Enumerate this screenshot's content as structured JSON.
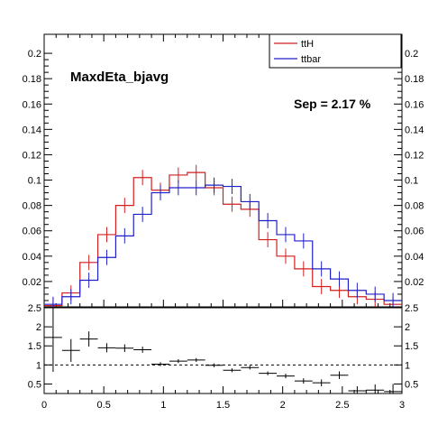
{
  "chart_data": [
    {
      "type": "line",
      "panel": "top",
      "title": "MaxdEta_bjavg",
      "annotation": "Sep = 2.17 %",
      "xlim": [
        0,
        3
      ],
      "ylim": [
        0,
        0.215
      ],
      "yticks": [
        "0.02",
        "0.04",
        "0.06",
        "0.08",
        "0.1",
        "0.12",
        "0.14",
        "0.16",
        "0.18",
        "0.2"
      ],
      "ytick_values": [
        0.02,
        0.04,
        0.06,
        0.08,
        0.1,
        0.12,
        0.14,
        0.16,
        0.18,
        0.2
      ],
      "legend_position": "top-right",
      "bin_edges": [
        0,
        0.15,
        0.3,
        0.45,
        0.6,
        0.75,
        0.9,
        1.05,
        1.2,
        1.35,
        1.5,
        1.65,
        1.8,
        1.95,
        2.1,
        2.25,
        2.4,
        2.55,
        2.7,
        2.85,
        3.0
      ],
      "series": [
        {
          "name": "ttH",
          "color": "#d02020",
          "values": [
            0.001,
            0.011,
            0.035,
            0.057,
            0.08,
            0.102,
            0.092,
            0.104,
            0.106,
            0.094,
            0.081,
            0.077,
            0.053,
            0.04,
            0.03,
            0.016,
            0.013,
            0.008,
            0.006,
            0.002
          ]
        },
        {
          "name": "ttbar",
          "color": "#2020c8",
          "values": [
            0.002,
            0.008,
            0.021,
            0.039,
            0.056,
            0.073,
            0.09,
            0.094,
            0.094,
            0.096,
            0.095,
            0.083,
            0.068,
            0.057,
            0.052,
            0.03,
            0.022,
            0.013,
            0.01,
            0.005
          ]
        }
      ],
      "grid": false
    },
    {
      "type": "scatter",
      "panel": "bottom",
      "xlim": [
        0,
        3
      ],
      "ylim": [
        0.25,
        2.5
      ],
      "xticks": [
        "0",
        "0.5",
        "1",
        "1.5",
        "2",
        "2.5",
        "3"
      ],
      "xtick_values": [
        0,
        0.5,
        1,
        1.5,
        2,
        2.5,
        3
      ],
      "yticks_left": [
        "0.5",
        "1",
        "1.5",
        "2",
        "2.5"
      ],
      "yticks_right": [
        "0.5",
        "1",
        "1.5",
        "2",
        "2.5"
      ],
      "ytick_values": [
        0.5,
        1,
        1.5,
        2,
        2.5
      ],
      "reference_line": 1.0,
      "bin_edges": [
        0,
        0.15,
        0.3,
        0.45,
        0.6,
        0.75,
        0.9,
        1.05,
        1.2,
        1.35,
        1.5,
        1.65,
        1.8,
        1.95,
        2.1,
        2.25,
        2.4,
        2.55,
        2.7,
        2.85,
        3.0
      ],
      "values": [
        1.72,
        1.38,
        1.68,
        1.45,
        1.44,
        1.4,
        1.02,
        1.1,
        1.13,
        0.99,
        0.86,
        0.93,
        0.78,
        0.71,
        0.58,
        0.53,
        0.73,
        0.32,
        0.34,
        0.3
      ],
      "errors": [
        0.9,
        0.3,
        0.2,
        0.12,
        0.1,
        0.08,
        0.05,
        0.05,
        0.05,
        0.05,
        0.05,
        0.05,
        0.05,
        0.06,
        0.07,
        0.09,
        0.1,
        0.12,
        0.15,
        0.2
      ],
      "grid": false
    }
  ]
}
